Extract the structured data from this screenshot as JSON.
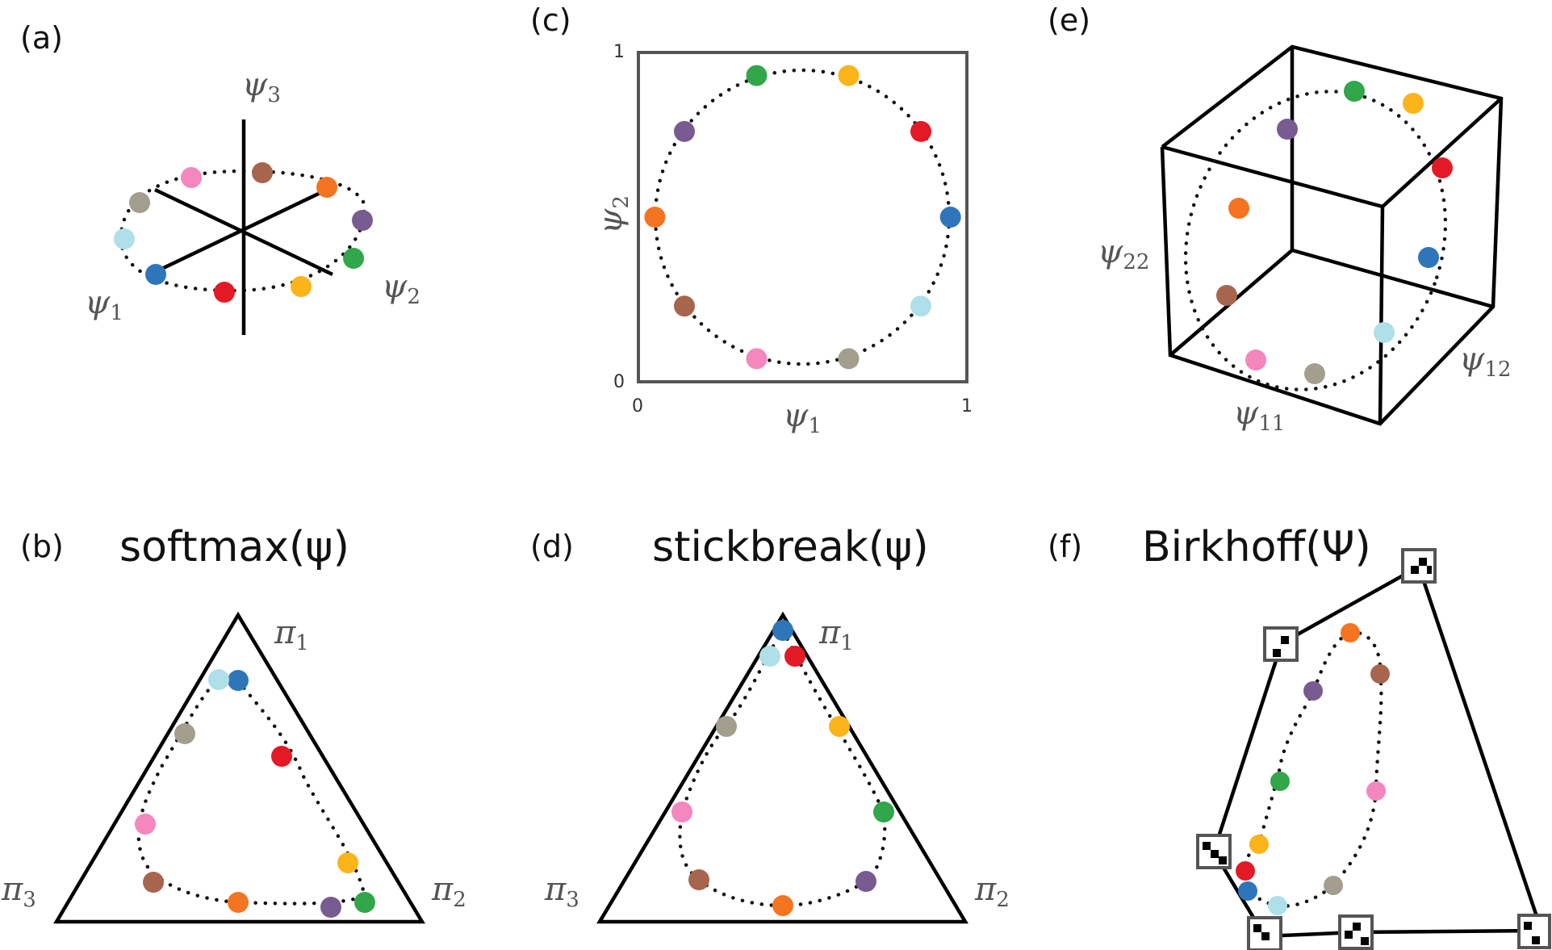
{
  "panels": {
    "a": {
      "label": "(a)",
      "axis_labels": {
        "psi1": {
          "sym": "ψ",
          "sub": "1"
        },
        "psi2": {
          "sym": "ψ",
          "sub": "2"
        },
        "psi3": {
          "sym": "ψ",
          "sub": "3"
        }
      }
    },
    "b": {
      "label": "(b)",
      "title": "softmax(ψ)",
      "vertices": {
        "pi1": {
          "sym": "π",
          "sub": "1"
        },
        "pi2": {
          "sym": "π",
          "sub": "2"
        },
        "pi3": {
          "sym": "π",
          "sub": "3"
        }
      }
    },
    "c": {
      "label": "(c)",
      "xlabel": {
        "sym": "ψ",
        "sub": "1"
      },
      "ylabel": {
        "sym": "ψ",
        "sub": "2"
      },
      "ticks": {
        "x0": "0",
        "x1": "1",
        "y0": "0",
        "y1": "1"
      }
    },
    "d": {
      "label": "(d)",
      "title": "stickbreak(ψ)",
      "vertices": {
        "pi1": {
          "sym": "π",
          "sub": "1"
        },
        "pi2": {
          "sym": "π",
          "sub": "2"
        },
        "pi3": {
          "sym": "π",
          "sub": "3"
        }
      }
    },
    "e": {
      "label": "(e)",
      "axis_labels": {
        "psi11": {
          "sym": "ψ",
          "sub": "11"
        },
        "psi12": {
          "sym": "ψ",
          "sub": "12"
        },
        "psi22": {
          "sym": "ψ",
          "sub": "22"
        }
      }
    },
    "f": {
      "label": "(f)",
      "title": "Birkhoff(Ψ)"
    }
  },
  "point_colors": [
    "#2e76b9",
    "#e31a26",
    "#fbb41a",
    "#31a64a",
    "#775b91",
    "#f47421",
    "#a7654d",
    "#f387be",
    "#a39e8e",
    "#afdfe9"
  ],
  "chart_data": [
    {
      "type": "scatter",
      "panel": "c",
      "xlabel": "ψ1",
      "ylabel": "ψ2",
      "xlim": [
        0,
        1
      ],
      "ylim": [
        0,
        1
      ],
      "points": [
        {
          "x": 0.95,
          "y": 0.5
        },
        {
          "x": 0.86,
          "y": 0.76
        },
        {
          "x": 0.64,
          "y": 0.93
        },
        {
          "x": 0.36,
          "y": 0.93
        },
        {
          "x": 0.14,
          "y": 0.76
        },
        {
          "x": 0.05,
          "y": 0.5
        },
        {
          "x": 0.14,
          "y": 0.23
        },
        {
          "x": 0.36,
          "y": 0.07
        },
        {
          "x": 0.64,
          "y": 0.07
        },
        {
          "x": 0.86,
          "y": 0.23
        }
      ]
    }
  ]
}
